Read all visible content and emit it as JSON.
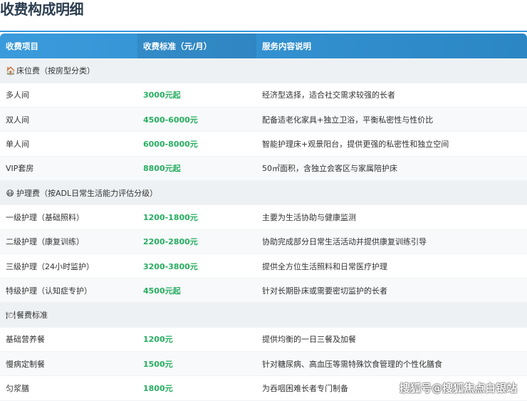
{
  "title": "收费构成明细",
  "headers": [
    "收费项目",
    "收费标准（元/月）",
    "服务内容说明"
  ],
  "sections": [
    {
      "icon": "house-icon",
      "glyph": "🏠",
      "label": "床位费（按房型分类）",
      "rows": [
        {
          "item": "多人间",
          "price": "3000元起",
          "desc": "经济型选择，适合社交需求较强的长者"
        },
        {
          "item": "双人间",
          "price": "4500-6000元",
          "desc": "配备适老化家具+独立卫浴，平衡私密性与性价比"
        },
        {
          "item": "单人间",
          "price": "6000-8000元",
          "desc": "智能护理床+观景阳台，提供更强的私密性和独立空间"
        },
        {
          "item": "VIP套房",
          "price": "8800元起",
          "desc": "50㎡面积，含独立会客区与家属陪护床"
        }
      ]
    },
    {
      "icon": "nurse-face-icon",
      "glyph": "😷",
      "label": "护理费（按ADL日常生活能力评估分级）",
      "rows": [
        {
          "item": "一级护理（基础照料）",
          "price": "1200-1800元",
          "desc": "主要为生活协助与健康监测"
        },
        {
          "item": "二级护理（康复训练）",
          "price": "2200-2800元",
          "desc": "协助完成部分日常生活活动并提供康复训练引导"
        },
        {
          "item": "三级护理（24小时监护）",
          "price": "3200-3800元",
          "desc": "提供全方位生活照料和日常医疗护理"
        },
        {
          "item": "特级护理（认知症专护）",
          "price": "4500元起",
          "desc": "针对长期卧床或需要密切监护的长者"
        }
      ]
    },
    {
      "icon": "meal-icon",
      "glyph": "🍽",
      "label": "餐费标准",
      "rows": [
        {
          "item": "基础营养餐",
          "price": "1200元",
          "desc": "提供均衡的一日三餐及加餐"
        },
        {
          "item": "慢病定制餐",
          "price": "1500元",
          "desc": "针对糖尿病、高血压等需特殊饮食管理的个性化膳食"
        },
        {
          "item": "匀浆膳",
          "price": "1800元",
          "desc": "为吞咽困难长者专门制备"
        }
      ]
    }
  ],
  "watermark": "搜狐号@搜狐焦点白银站",
  "colors": {
    "accent": "#3498db",
    "price": "#27ae60"
  }
}
